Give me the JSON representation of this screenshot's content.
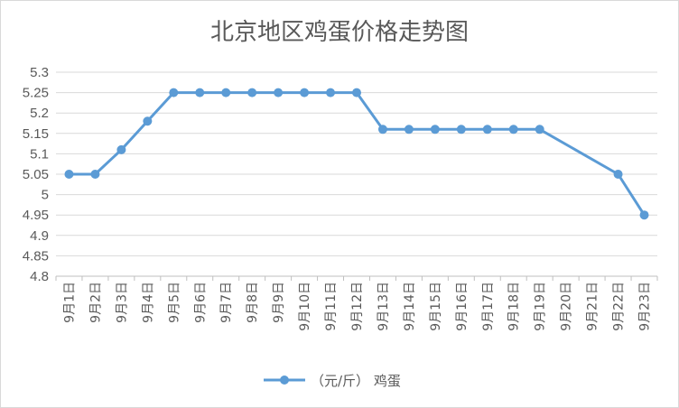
{
  "chart_data": {
    "type": "line",
    "title": "北京地区鸡蛋价格走势图",
    "xlabel": "",
    "ylabel": "",
    "categories": [
      "9月1日",
      "9月2日",
      "9月3日",
      "9月4日",
      "9月5日",
      "9月6日",
      "9月7日",
      "9月8日",
      "9月9日",
      "9月10日",
      "9月11日",
      "9月12日",
      "9月13日",
      "9月14日",
      "9月15日",
      "9月16日",
      "9月17日",
      "9月18日",
      "9月19日",
      "9月20日",
      "9月21日",
      "9月22日",
      "9月23日"
    ],
    "series": [
      {
        "name": "（元/斤） 鸡蛋",
        "color": "#5b9bd5",
        "values": [
          5.05,
          5.05,
          5.11,
          5.18,
          5.25,
          5.25,
          5.25,
          5.25,
          5.25,
          5.25,
          5.25,
          5.25,
          5.16,
          5.16,
          5.16,
          5.16,
          5.16,
          5.16,
          5.16,
          null,
          null,
          5.05,
          4.95
        ]
      }
    ],
    "ylim": [
      4.8,
      5.3
    ],
    "yticks": [
      "4.8",
      "4.85",
      "4.9",
      "4.95",
      "5",
      "5.05",
      "5.1",
      "5.15",
      "5.2",
      "5.25",
      "5.3"
    ],
    "grid": true,
    "legend": "bottom"
  }
}
